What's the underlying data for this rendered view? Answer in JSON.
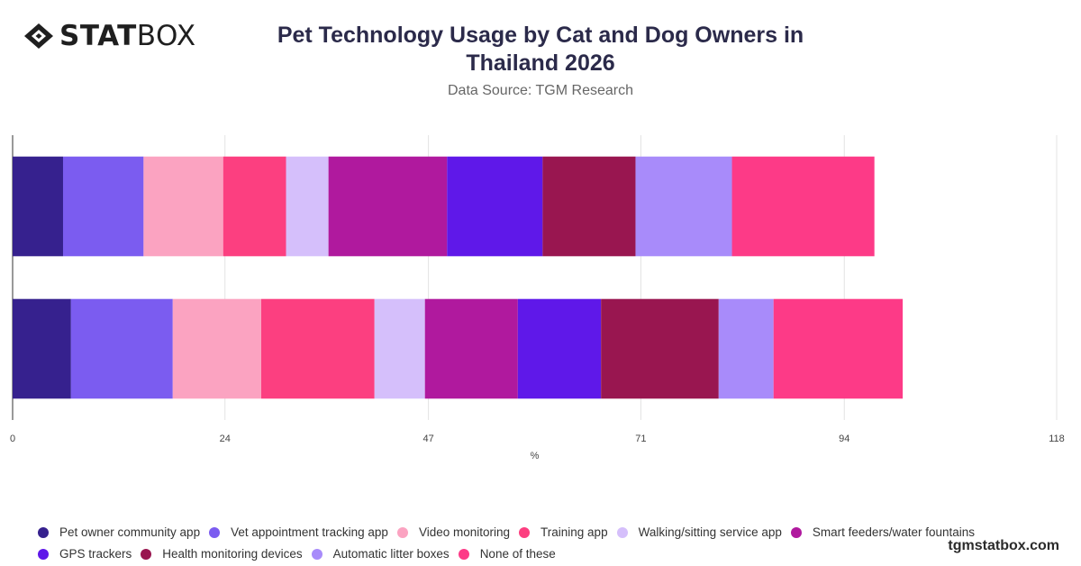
{
  "brand": {
    "logo_bold": "STAT",
    "logo_light": "BOX"
  },
  "title": "Pet Technology Usage by Cat and Dog Owners in Thailand 2026",
  "subtitle": "Data Source: TGM Research",
  "watermark": "tgmstatbox.com",
  "chart_data": {
    "type": "bar",
    "orientation": "horizontal",
    "stacked": true,
    "categories": [
      "",
      ""
    ],
    "xlabel": "%",
    "xlim": [
      0,
      118
    ],
    "xticks": [
      0,
      24,
      47,
      71,
      94,
      118
    ],
    "grid": true,
    "legend_position": "bottom",
    "series": [
      {
        "name": "Pet owner community app",
        "color": "#36218e",
        "values": [
          5.7,
          6.6
        ]
      },
      {
        "name": "Vet appointment tracking app",
        "color": "#7b5cf0",
        "values": [
          9.1,
          11.5
        ]
      },
      {
        "name": "Video monitoring",
        "color": "#fba3c1",
        "values": [
          9.0,
          10.0
        ]
      },
      {
        "name": "Training app",
        "color": "#fc3f80",
        "values": [
          7.1,
          12.8
        ]
      },
      {
        "name": "Walking/sitting service app",
        "color": "#d5bffb",
        "values": [
          4.8,
          5.7
        ]
      },
      {
        "name": "Smart feeders/water fountains",
        "color": "#b0199e",
        "values": [
          13.4,
          10.5
        ]
      },
      {
        "name": "GPS trackers",
        "color": "#5f18e9",
        "values": [
          10.8,
          9.4
        ]
      },
      {
        "name": "Health monitoring devices",
        "color": "#991650",
        "values": [
          10.5,
          13.3
        ]
      },
      {
        "name": "Automatic litter boxes",
        "color": "#a88bfa",
        "values": [
          10.9,
          6.2
        ]
      },
      {
        "name": "None of these",
        "color": "#fd3a87",
        "values": [
          16.1,
          14.6
        ]
      }
    ]
  }
}
